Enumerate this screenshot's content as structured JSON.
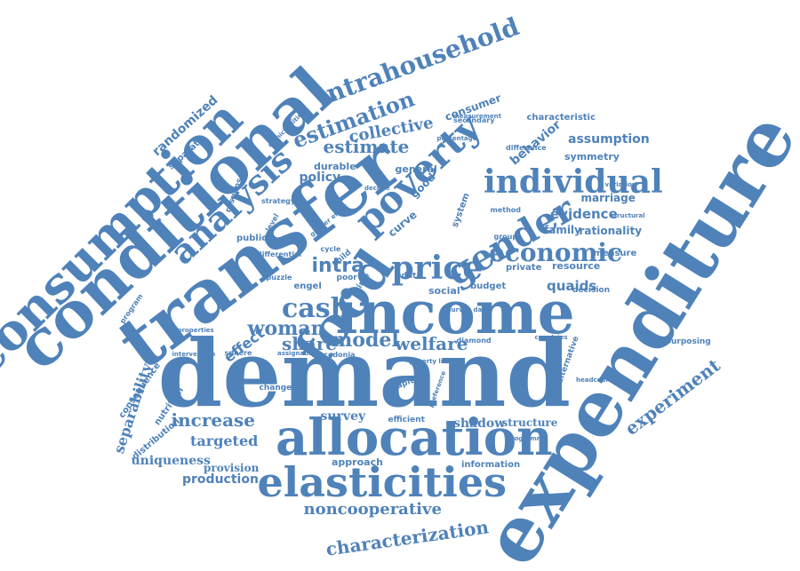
{
  "colors": {
    "word": "#4f82b9",
    "background": "#ffffff"
  },
  "words": [
    "demand",
    "expenditure",
    "transfer",
    "income",
    "conditional",
    "consumption",
    "food",
    "allocation",
    "elasticities",
    "poverty",
    "analysis",
    "gender",
    "individual",
    "price",
    "economic",
    "cash",
    "intrahousehold",
    "estimation",
    "estimate",
    "collective",
    "woman",
    "share",
    "model",
    "welfare",
    "increase",
    "survey",
    "shadow",
    "structure",
    "noncooperative",
    "characterization",
    "experiment",
    "separability",
    "targeted",
    "uniqueness",
    "provision",
    "production",
    "approach",
    "information",
    "policy",
    "durable",
    "general",
    "consumer",
    "randomized",
    "separate",
    "evidence",
    "family",
    "rationality",
    "marriage",
    "assumption",
    "symmetry",
    "behavior",
    "characteristic",
    "measure",
    "resource",
    "private",
    "quaids",
    "decision",
    "budget",
    "social",
    "intra",
    "effect",
    "repurposing",
    "program",
    "consequence",
    "distribution",
    "nutrition",
    "alternative",
    "change",
    "public",
    "level",
    "response",
    "curve",
    "good",
    "system",
    "method",
    "group",
    "variation",
    "structural",
    "measurement",
    "difference",
    "percentage",
    "decline",
    "programme",
    "diamond",
    "countries",
    "headcount",
    "efficient",
    "cycle",
    "poor",
    "engel",
    "puzzle",
    "differential",
    "strategy",
    "municipalities",
    "secondary",
    "child",
    "time",
    "data",
    "macedonia",
    "sphere",
    "intervention",
    "properties",
    "assignable",
    "recipient",
    "preference",
    "survey data",
    "capita",
    "gender effect",
    "poverty line",
    "bargaining"
  ]
}
